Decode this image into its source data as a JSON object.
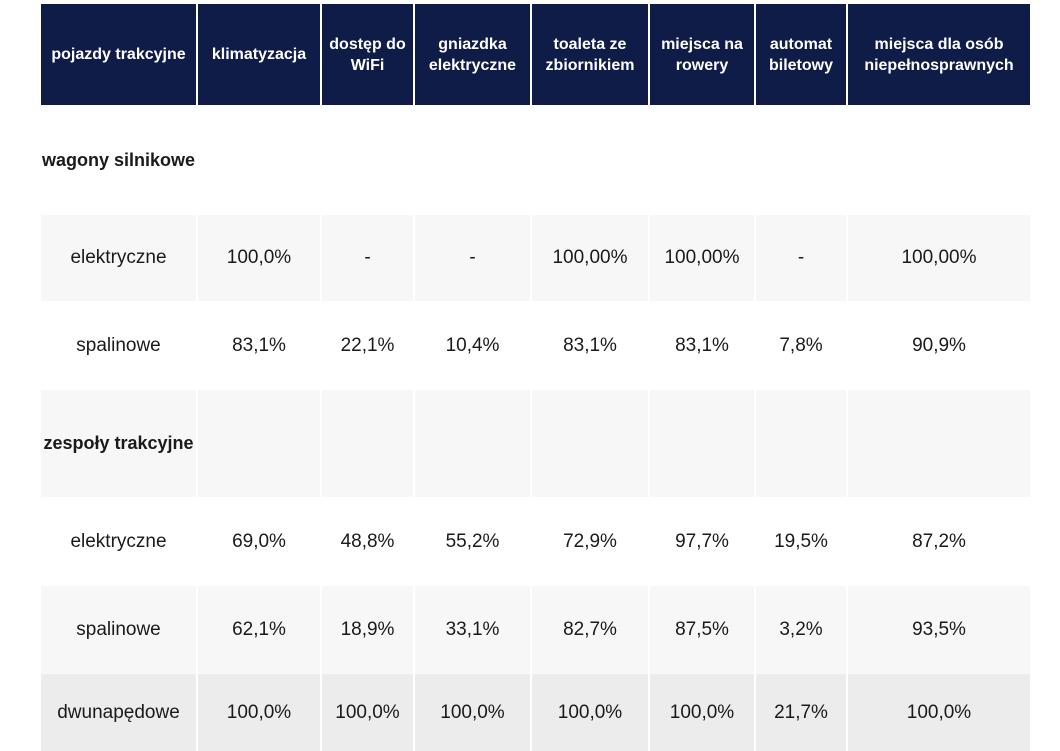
{
  "headers": [
    "pojazdy trakcyjne",
    "klimatyzacja",
    "dostęp do WiFi",
    "gniazdka elektryczne",
    "toaleta ze zbiornikiem",
    "miejsca na rowery",
    "automat biletowy",
    "miejsca dla osób niepełnosprawnych"
  ],
  "rows": [
    {
      "label": "wagony silnikowe",
      "section": true,
      "values": [
        "",
        "",
        "",
        "",
        "",
        "",
        ""
      ]
    },
    {
      "label": "elektryczne",
      "section": false,
      "values": [
        "100,0%",
        "-",
        "-",
        "100,00%",
        "100,00%",
        "-",
        "100,00%"
      ]
    },
    {
      "label": "spalinowe",
      "section": false,
      "values": [
        "83,1%",
        "22,1%",
        "10,4%",
        "83,1%",
        "83,1%",
        "7,8%",
        "90,9%"
      ]
    },
    {
      "label": "zespoły trakcyjne",
      "section": true,
      "values": [
        "",
        "",
        "",
        "",
        "",
        "",
        ""
      ]
    },
    {
      "label": "elektryczne",
      "section": false,
      "values": [
        "69,0%",
        "48,8%",
        "55,2%",
        "72,9%",
        "97,7%",
        "19,5%",
        "87,2%"
      ]
    },
    {
      "label": "spalinowe",
      "section": false,
      "values": [
        "62,1%",
        "18,9%",
        "33,1%",
        "82,7%",
        "87,5%",
        "3,2%",
        "93,5%"
      ]
    },
    {
      "label": "dwunapędowe",
      "section": false,
      "values": [
        "100,0%",
        "100,0%",
        "100,0%",
        "100,0%",
        "100,0%",
        "21,7%",
        "100,0%"
      ]
    }
  ],
  "colors": {
    "header_bg": "#0f1c47",
    "header_text": "#ffffff",
    "row_white": "#ffffff",
    "row_light": "#f7f7f7",
    "row_mid": "#ececec"
  }
}
